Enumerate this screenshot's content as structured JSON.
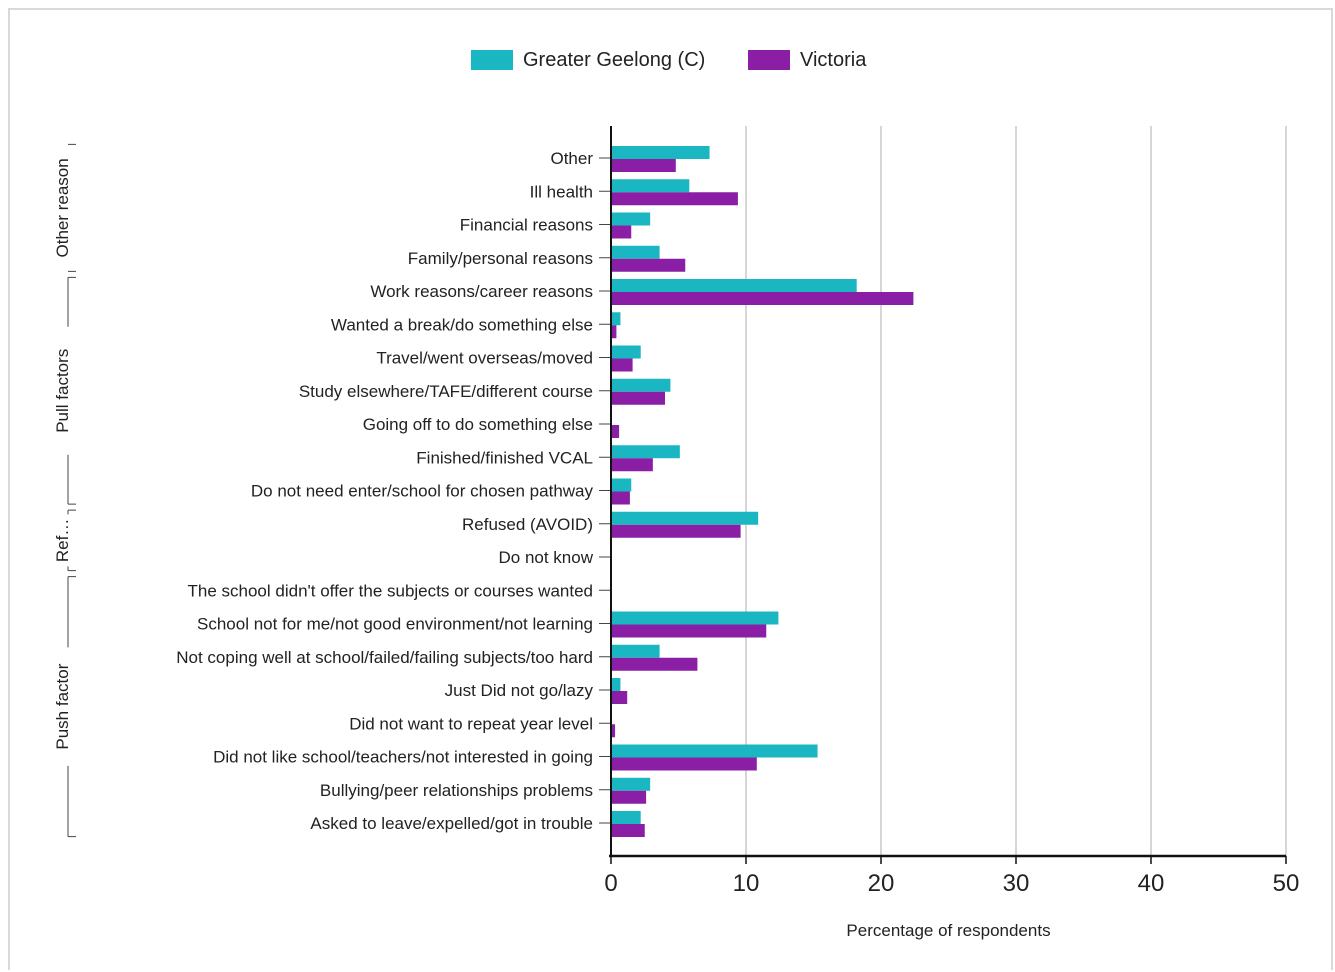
{
  "chart_data": {
    "type": "bar",
    "orientation": "horizontal",
    "categories": [
      "Other",
      "Ill health",
      "Financial reasons",
      "Family/personal reasons",
      "Work reasons/career reasons",
      "Wanted a break/do something else",
      "Travel/went overseas/moved",
      "Study elsewhere/TAFE/different course",
      "Going off to do something else",
      "Finished/finished VCAL",
      "Do not need enter/school for chosen pathway",
      "Refused (AVOID)",
      "Do not know",
      "The school didn't offer the subjects or courses wanted",
      "School not for me/not good environment/not learning",
      "Not coping well at school/failed/failing subjects/too hard",
      "Just Did not go/lazy",
      "Did not want to repeat year level",
      "Did not like school/teachers/not interested in going",
      "Bullying/peer relationships problems",
      "Asked to leave/expelled/got in trouble"
    ],
    "series": [
      {
        "name": "Greater Geelong (C)",
        "color": "#1ab7c3",
        "values": [
          7.3,
          5.8,
          2.9,
          3.6,
          18.2,
          0.7,
          2.2,
          4.4,
          0,
          5.1,
          1.5,
          10.9,
          0,
          0,
          12.4,
          3.6,
          0.7,
          0,
          15.3,
          2.9,
          2.2
        ]
      },
      {
        "name": "Victoria",
        "color": "#8a1fa6",
        "values": [
          4.8,
          9.4,
          1.5,
          5.5,
          22.4,
          0.4,
          1.6,
          4.0,
          0.6,
          3.1,
          1.4,
          9.6,
          0,
          0,
          11.5,
          6.4,
          1.2,
          0.3,
          10.8,
          2.6,
          2.5
        ]
      }
    ],
    "groups": [
      {
        "label": "Other reason",
        "from": 0,
        "to": 3
      },
      {
        "label": "Pull factors",
        "from": 4,
        "to": 10
      },
      {
        "label": "Ref…",
        "from": 11,
        "to": 12
      },
      {
        "label": "Push factor",
        "from": 13,
        "to": 20
      }
    ],
    "xlabel": "Percentage of respondents",
    "xlim": [
      0,
      50
    ],
    "xticks": [
      "0",
      "10",
      "20",
      "30",
      "40",
      "50"
    ],
    "grid": "vertical",
    "legend_position": "top-center"
  }
}
